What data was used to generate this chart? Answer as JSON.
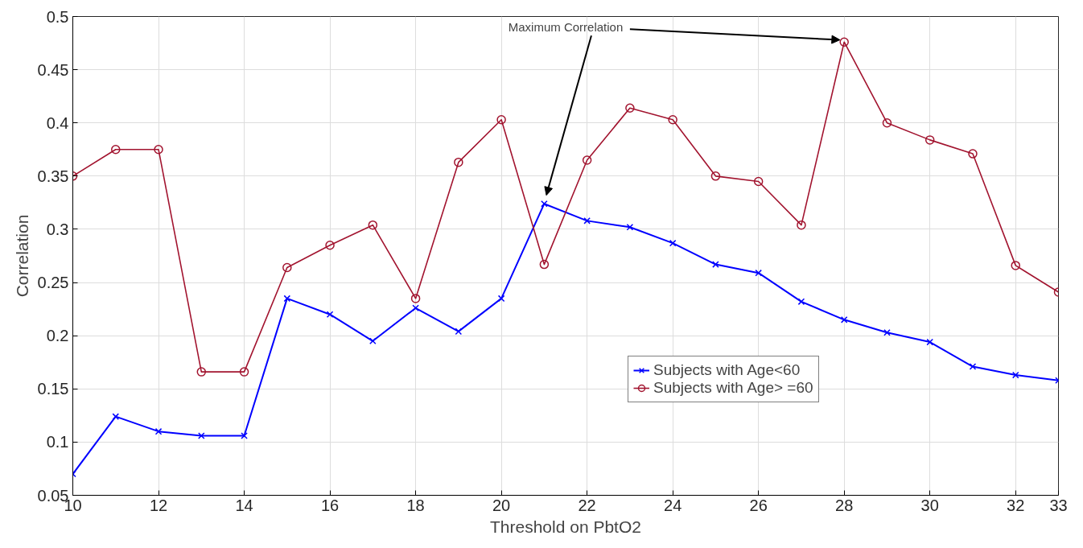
{
  "chart_data": {
    "type": "line",
    "xlabel": "Threshold on PbtO2",
    "ylabel": "Correlation",
    "x": [
      10,
      11,
      12,
      13,
      14,
      15,
      16,
      17,
      18,
      19,
      20,
      21,
      22,
      23,
      24,
      25,
      26,
      27,
      28,
      29,
      30,
      31,
      32,
      33
    ],
    "series": [
      {
        "name": "Subjects with Age<60",
        "color": "#0000ff",
        "marker": "cross",
        "values": [
          0.07,
          0.124,
          0.11,
          0.106,
          0.106,
          0.235,
          0.22,
          0.195,
          0.226,
          0.204,
          0.235,
          0.324,
          0.308,
          0.302,
          0.287,
          0.267,
          0.259,
          0.232,
          0.215,
          0.203,
          0.194,
          0.171,
          0.163,
          0.158
        ]
      },
      {
        "name": "Subjects with Age> =60",
        "color": "#a2142f",
        "marker": "circle",
        "values": [
          0.35,
          0.375,
          0.375,
          0.166,
          0.166,
          0.264,
          0.285,
          0.304,
          0.235,
          0.363,
          0.403,
          0.267,
          0.365,
          0.414,
          0.403,
          0.35,
          0.345,
          0.304,
          0.476,
          0.4,
          0.384,
          0.371,
          0.266,
          0.241
        ]
      }
    ],
    "xlim": [
      10,
      33
    ],
    "ylim": [
      0.05,
      0.5
    ],
    "xticks": [
      10,
      12,
      14,
      16,
      18,
      20,
      22,
      24,
      26,
      28,
      30,
      32,
      33
    ],
    "yticks": [
      0.05,
      0.1,
      0.15,
      0.2,
      0.25,
      0.3,
      0.35,
      0.4,
      0.45,
      0.5
    ],
    "grid": true,
    "legend": "bottom right",
    "line_style": "solid",
    "annotations": [
      {
        "text": "Maximum Correlation",
        "x": 28,
        "y": 0.476
      }
    ]
  }
}
